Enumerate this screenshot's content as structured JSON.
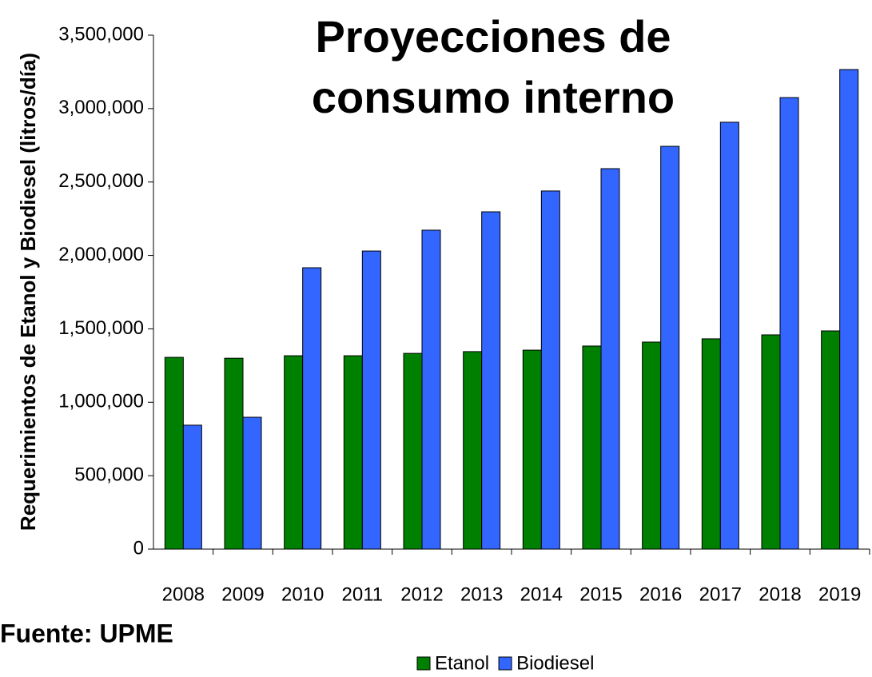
{
  "chart_data": {
    "type": "bar",
    "title": "Proyecciones de consumo interno",
    "y_label": "Requerimientos de Etanol y Biodiesel (litros/día)",
    "source": "Fuente: UPME",
    "categories": [
      "2008",
      "2009",
      "2010",
      "2011",
      "2012",
      "2013",
      "2014",
      "2015",
      "2016",
      "2017",
      "2018",
      "2019"
    ],
    "series": [
      {
        "name": "Etanol",
        "color": "#008000",
        "values": [
          1306000,
          1300000,
          1317000,
          1317000,
          1333000,
          1345000,
          1355000,
          1383000,
          1410000,
          1432000,
          1459000,
          1486000
        ]
      },
      {
        "name": "Biodiesel",
        "color": "#3366ff",
        "values": [
          844000,
          898000,
          1916000,
          2030000,
          2172000,
          2297000,
          2439000,
          2591000,
          2743000,
          2907000,
          3075000,
          3266000
        ]
      }
    ],
    "ylim": [
      0,
      3500000
    ],
    "yticks": [
      0,
      {
        "value": 500000,
        "label": "500,000"
      },
      {
        "value": 1000000,
        "label": "1,000,000"
      },
      {
        "value": 1500000,
        "label": "1,500,000"
      },
      {
        "value": 2000000,
        "label": "2,000,000"
      },
      {
        "value": 2500000,
        "label": "2,500,000"
      },
      {
        "value": 3000000,
        "label": "3,000,000"
      },
      {
        "value": 3500000,
        "label": "3,500,000"
      }
    ],
    "legend": "bottom"
  }
}
